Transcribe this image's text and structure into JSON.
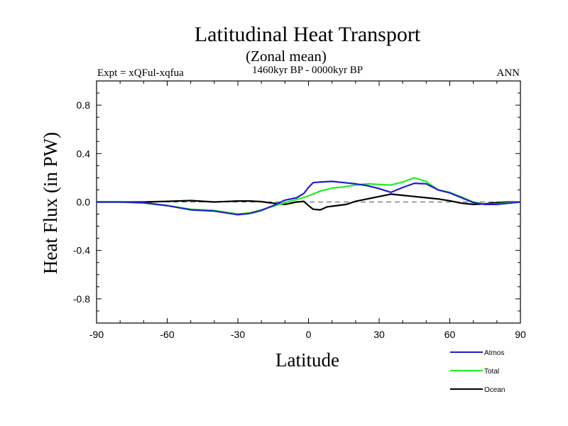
{
  "chart_data": {
    "type": "line",
    "title": "Latitudinal Heat Transport",
    "subtitle": "(Zonal mean)",
    "left_label": "Expt = xQFul-xqfua",
    "center_label": "1460kyr BP - 0000kyr BP",
    "right_label": "ANN",
    "xlabel": "Latitude",
    "ylabel": "Heat Flux (in PW)",
    "xlim": [
      -90,
      90
    ],
    "ylim": [
      -1.0,
      1.0
    ],
    "xticks": [
      -90,
      -60,
      -30,
      0,
      30,
      60,
      90
    ],
    "xtick_labels": [
      "-90",
      "-60",
      "-30",
      "0",
      "30",
      "60",
      "90"
    ],
    "yticks": [
      -0.8,
      -0.4,
      0.0,
      0.4,
      0.8
    ],
    "ytick_labels": [
      "-0.8",
      "-0.4",
      "0.0",
      "0.4",
      "0.8"
    ],
    "zero_line": "dashed",
    "series": [
      {
        "name": "Atmos",
        "color": "#1f1fcc",
        "x": [
          -90,
          -80,
          -70,
          -60,
          -50,
          -40,
          -35,
          -30,
          -25,
          -20,
          -15,
          -10,
          -5,
          -2,
          0,
          2,
          5,
          10,
          15,
          20,
          25,
          30,
          35,
          40,
          45,
          50,
          55,
          60,
          65,
          70,
          75,
          80,
          85,
          90
        ],
        "y": [
          0.0,
          0.0,
          -0.005,
          -0.03,
          -0.065,
          -0.075,
          -0.09,
          -0.105,
          -0.095,
          -0.07,
          -0.03,
          0.015,
          0.035,
          0.07,
          0.12,
          0.16,
          0.165,
          0.17,
          0.16,
          0.15,
          0.135,
          0.11,
          0.08,
          0.12,
          0.155,
          0.15,
          0.1,
          0.075,
          0.035,
          -0.005,
          -0.02,
          -0.02,
          -0.01,
          0.0
        ]
      },
      {
        "name": "Total",
        "color": "#22ee22",
        "x": [
          -90,
          -80,
          -70,
          -60,
          -50,
          -40,
          -35,
          -30,
          -25,
          -20,
          -15,
          -10,
          -5,
          0,
          5,
          10,
          15,
          20,
          25,
          30,
          35,
          40,
          45,
          50,
          55,
          60,
          65,
          70,
          75,
          80,
          85,
          90
        ],
        "y": [
          0.0,
          0.0,
          -0.01,
          -0.03,
          -0.06,
          -0.07,
          -0.085,
          -0.1,
          -0.09,
          -0.065,
          -0.035,
          -0.005,
          0.02,
          0.05,
          0.09,
          0.115,
          0.125,
          0.14,
          0.15,
          0.145,
          0.14,
          0.165,
          0.2,
          0.17,
          0.1,
          0.08,
          0.04,
          0.0,
          -0.02,
          -0.015,
          -0.005,
          0.0
        ]
      },
      {
        "name": "Ocean",
        "color": "#000000",
        "x": [
          -90,
          -80,
          -70,
          -60,
          -50,
          -40,
          -35,
          -30,
          -25,
          -20,
          -15,
          -10,
          -5,
          -2,
          0,
          2,
          5,
          8,
          12,
          16,
          20,
          25,
          30,
          35,
          40,
          45,
          50,
          55,
          60,
          65,
          70,
          75,
          80,
          85,
          90
        ],
        "y": [
          0.0,
          0.0,
          0.0,
          0.005,
          0.012,
          0.0,
          0.004,
          0.008,
          0.008,
          0.003,
          -0.01,
          -0.02,
          0.0,
          0.005,
          -0.03,
          -0.06,
          -0.065,
          -0.04,
          -0.03,
          -0.02,
          0.005,
          0.025,
          0.045,
          0.065,
          0.055,
          0.045,
          0.035,
          0.025,
          0.01,
          -0.01,
          -0.02,
          -0.015,
          -0.005,
          0.0,
          0.0
        ]
      }
    ],
    "legend": {
      "placement": "bottom-right",
      "entries": [
        "Atmos",
        "Total",
        "Ocean"
      ]
    }
  }
}
